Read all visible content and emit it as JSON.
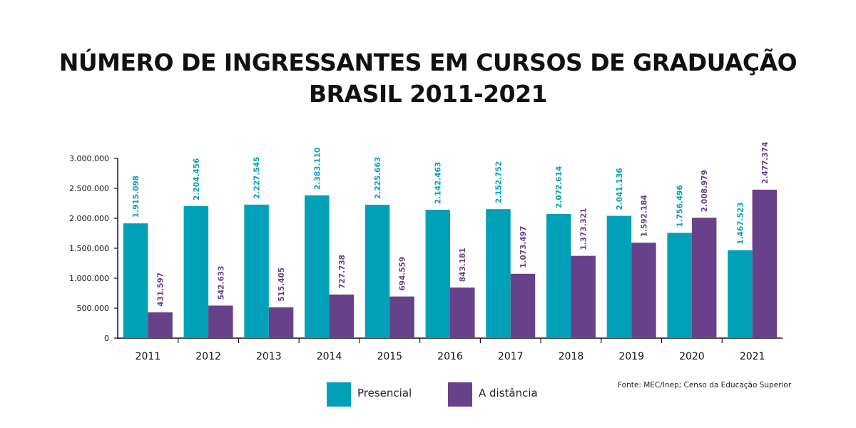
{
  "chart_data": {
    "type": "bar",
    "title": "NÚMERO DE INGRESSANTES EM CURSOS DE GRADUAÇÃO",
    "subtitle": "BRASIL 2011-2021",
    "categories": [
      "2011",
      "2012",
      "2013",
      "2014",
      "2015",
      "2016",
      "2017",
      "2018",
      "2019",
      "2020",
      "2021"
    ],
    "series": [
      {
        "name": "Presencial",
        "color": "#00a0b8",
        "values": [
          1915098,
          2204456,
          2227545,
          2383110,
          2225663,
          2142463,
          2152752,
          2072614,
          2041136,
          1756496,
          1467523
        ],
        "labels": [
          "1.915.098",
          "2.204.456",
          "2.227.545",
          "2.383.110",
          "2.225.663",
          "2.142.463",
          "2.152.752",
          "2.072.614",
          "2.041.136",
          "1.756.496",
          "1.467.523"
        ]
      },
      {
        "name": "A distância",
        "color": "#67418a",
        "values": [
          431597,
          542633,
          515405,
          727738,
          694559,
          843181,
          1073497,
          1373321,
          1592184,
          2008979,
          2477374
        ],
        "labels": [
          "431.597",
          "542.633",
          "515.405",
          "727.738",
          "694.559",
          "843.181",
          "1.073.497",
          "1.373.321",
          "1.592.184",
          "2.008.979",
          "2.477.374"
        ]
      }
    ],
    "ylim": [
      0,
      3000000
    ],
    "yticks": [
      0,
      500000,
      1000000,
      1500000,
      2000000,
      2500000,
      3000000
    ],
    "ytick_labels": [
      "0",
      "500.000",
      "1.000.000",
      "1.500.000",
      "2.000.000",
      "2.500.000",
      "3.000.000"
    ],
    "grid": false,
    "legend_placement": "bottom-center",
    "source": "Fonte: MEC/Inep; Censo da Educação Superior"
  }
}
